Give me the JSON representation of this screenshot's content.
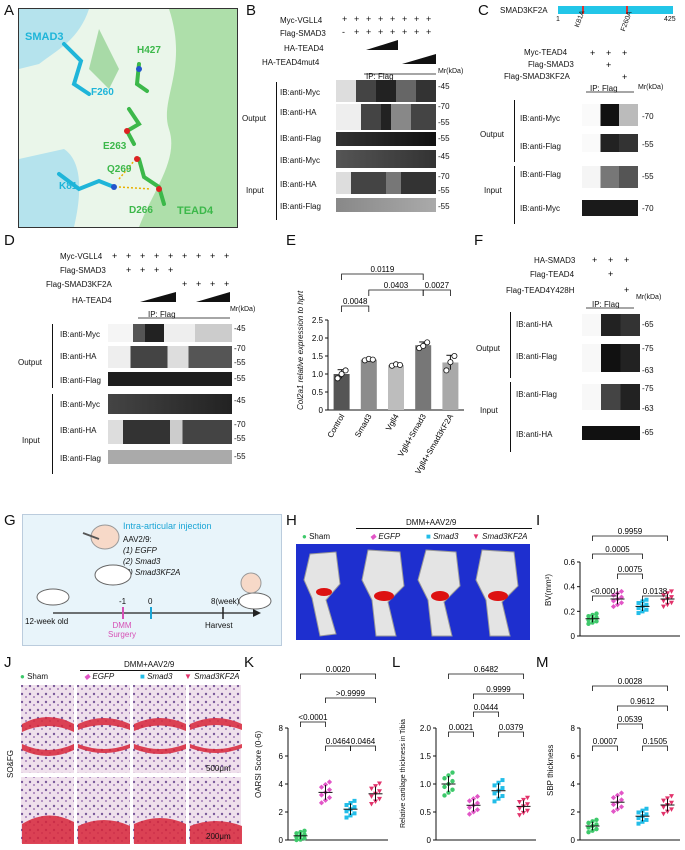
{
  "panels": [
    "A",
    "B",
    "C",
    "D",
    "E",
    "F",
    "G",
    "H",
    "I",
    "J",
    "K",
    "L",
    "M"
  ],
  "A": {
    "smad3": "SMAD3",
    "tead4": "TEAD4",
    "res": [
      "H427",
      "F260",
      "E263",
      "Q269",
      "K81",
      "D266"
    ],
    "colors": {
      "smad3": "#1fb5d9",
      "tead4": "#3cb84a",
      "bg": "#e4f4e4"
    }
  },
  "B": {
    "rows": [
      "Myc-VGLL4",
      "Flag-SMAD3",
      "HA-TEAD4",
      "HA-TEAD4mut4"
    ],
    "signs": [
      [
        "+",
        "+",
        "+",
        "+",
        "+",
        "+",
        "+",
        "+"
      ],
      [
        "-",
        "+",
        "+",
        "+",
        "+",
        "+",
        "+",
        "+"
      ]
    ],
    "ip": "IP:  Flag",
    "mr": "Mr(kDa)",
    "output": "Output",
    "input": "Input",
    "blots": [
      "IB:anti-Myc",
      "IB:anti-HA",
      "IB:anti-Flag"
    ],
    "mw_output": [
      "-45",
      "-70",
      "-55",
      "-55"
    ],
    "mw_input": [
      "-45",
      "-70",
      "-55",
      "-55"
    ]
  },
  "C": {
    "construct": "SMAD3KF2A",
    "ticks": [
      "1",
      "K81A",
      "F260A",
      "425"
    ],
    "rows": [
      "Myc-TEAD4",
      "Flag-SMAD3",
      "Flag-SMAD3KF2A"
    ],
    "signs": [
      [
        "+",
        "+",
        "+"
      ],
      [
        "",
        "+",
        ""
      ],
      [
        "",
        "",
        "+"
      ]
    ],
    "ip": "IP:  Flag",
    "mr": "Mr(kDa)",
    "output": "Output",
    "input": "Input",
    "output_blots": [
      "IB:anti-Myc",
      "IB:anti-Flag"
    ],
    "input_blots": [
      "IB:anti-Flag",
      "IB:anti-Myc"
    ],
    "mw": [
      "-70",
      "-55",
      "-55",
      "-70"
    ]
  },
  "D": {
    "rows": [
      "Myc-VGLL4",
      "Flag-SMAD3",
      "Flag-SMAD3KF2A",
      "HA-TEAD4"
    ],
    "signs_vgll4": [
      "+",
      "+",
      "+",
      "+",
      "+",
      "+",
      "+",
      "+",
      "+"
    ],
    "signs_smad3": [
      "+",
      "+",
      "+",
      "+"
    ],
    "signs_kf2a": [
      "+",
      "+",
      "+",
      "+"
    ],
    "ip": "IP:  Flag",
    "mr": "Mr(kDa)",
    "output": "Output",
    "input": "Input",
    "blots": [
      "IB:anti-Myc",
      "IB:anti-HA",
      "IB:anti-Flag"
    ],
    "mw_output": [
      "-45",
      "-70",
      "-55",
      "-55"
    ],
    "mw_input": [
      "-45",
      "-70",
      "-55",
      "-55"
    ]
  },
  "E": {
    "chart_data": {
      "type": "bar",
      "categories": [
        "Control",
        "Smad3",
        "Vgll4",
        "Vgll4+Smad3",
        "Vgll4+Smad3KF2A"
      ],
      "values": [
        1.0,
        1.4,
        1.25,
        1.8,
        1.32
      ],
      "points": [
        [
          0.88,
          1.0,
          1.1
        ],
        [
          1.38,
          1.42,
          1.4
        ],
        [
          1.23,
          1.27,
          1.25
        ],
        [
          1.72,
          1.78,
          1.88
        ],
        [
          1.1,
          1.33,
          1.5
        ]
      ],
      "errors": [
        0.12,
        0.03,
        0.03,
        0.09,
        0.2
      ],
      "ylabel": "Col2a1 relative expression to hprt",
      "ylim": [
        0,
        2.5
      ],
      "yticks": [
        "0",
        "0.5",
        "1.0",
        "1.5",
        "2.0",
        "2.5"
      ],
      "pvalues": [
        "0.0048",
        "0.0403",
        "0.0119",
        "0.0027"
      ],
      "colors": [
        "#555555",
        "#8c8c8c",
        "#bdbdbd",
        "#777777",
        "#a9a9a9"
      ]
    }
  },
  "F": {
    "rows": [
      "HA-SMAD3",
      "Flag-TEAD4",
      "Flag-TEAD4Y428H"
    ],
    "signs": [
      [
        "+",
        "+",
        "+"
      ],
      [
        "",
        "+",
        ""
      ],
      [
        "",
        "",
        "+"
      ]
    ],
    "ip": "IP:  Flag",
    "mr": "Mr(kDa)",
    "output": "Output",
    "input": "Input",
    "output_blots": [
      "IB:anti-HA",
      "IB:anti-Flag"
    ],
    "input_blots": [
      "IB:anti-Flag",
      "IB:anti-HA"
    ],
    "mw": [
      "-65",
      "-75",
      "-63",
      "-75",
      "-63",
      "-65"
    ]
  },
  "G": {
    "title": "Intra-articular injection",
    "virus": "AAV2/9:",
    "groups": [
      "(1) EGFP",
      "(2) Smad3",
      "(3) Smad3KF2A"
    ],
    "age": "12-week old",
    "surgery": "DMM Surgery",
    "harvest": "Harvest",
    "ticks": [
      "-1",
      "0",
      "8(week)"
    ]
  },
  "H": {
    "header": "DMM+AAV2/9",
    "legend": [
      "Sham",
      "EGFP",
      "Smad3",
      "Smad3KF2A"
    ]
  },
  "I": {
    "chart_data": {
      "type": "scatter",
      "categories": [
        "Sham",
        "EGFP",
        "Smad3",
        "Smad3KF2A"
      ],
      "means": [
        0.14,
        0.3,
        0.24,
        0.3
      ],
      "ylabel": "BV(mm³)",
      "ylim": [
        0,
        0.6
      ],
      "yticks": [
        "0",
        "0.2",
        "0.4",
        "0.6"
      ],
      "pvalues": [
        "<0.0001",
        "0.0005",
        "0.0075",
        "0.0138",
        "0.9959"
      ]
    }
  },
  "J": {
    "header": "DMM+AAV2/9",
    "legend": [
      "Sham",
      "EGFP",
      "Smad3",
      "Smad3KF2A"
    ],
    "side": "SO&FG",
    "scale1": "500μm",
    "scale2": "200μm"
  },
  "K": {
    "chart_data": {
      "type": "scatter",
      "categories": [
        "Sham",
        "EGFP",
        "Smad3",
        "Smad3KF2A"
      ],
      "means": [
        0.3,
        3.4,
        2.2,
        3.3
      ],
      "ylabel": "OARSI Score (0-6)",
      "ylim": [
        0,
        8
      ],
      "yticks": [
        "0",
        "2",
        "4",
        "6",
        "8"
      ],
      "pvalues": [
        "<0.0001",
        "0.0464",
        "0.0464",
        ">0.9999",
        "0.0020"
      ]
    }
  },
  "L": {
    "chart_data": {
      "type": "scatter",
      "categories": [
        "Sham",
        "EGFP",
        "Smad3",
        "Smad3KF2A"
      ],
      "means": [
        1.0,
        0.62,
        0.88,
        0.6
      ],
      "ylabel": "Relative cartilage thickness in Tibia",
      "ylim": [
        0,
        2.0
      ],
      "yticks": [
        "0",
        "0.5",
        "1.0",
        "1.5",
        "2.0"
      ],
      "pvalues": [
        "0.0021",
        "0.0444",
        "0.0379",
        "0.9999",
        "0.6482"
      ]
    }
  },
  "M": {
    "chart_data": {
      "type": "scatter",
      "categories": [
        "Sham",
        "EGFP",
        "Smad3",
        "Smad3KF2A"
      ],
      "means": [
        1.0,
        2.7,
        1.7,
        2.5
      ],
      "ylabel": "SBP thickness",
      "ylim": [
        0,
        8
      ],
      "yticks": [
        "0",
        "2",
        "4",
        "6",
        "8"
      ],
      "pvalues": [
        "0.0007",
        "0.0539",
        "0.1505",
        "0.9612",
        "0.0028"
      ]
    }
  }
}
